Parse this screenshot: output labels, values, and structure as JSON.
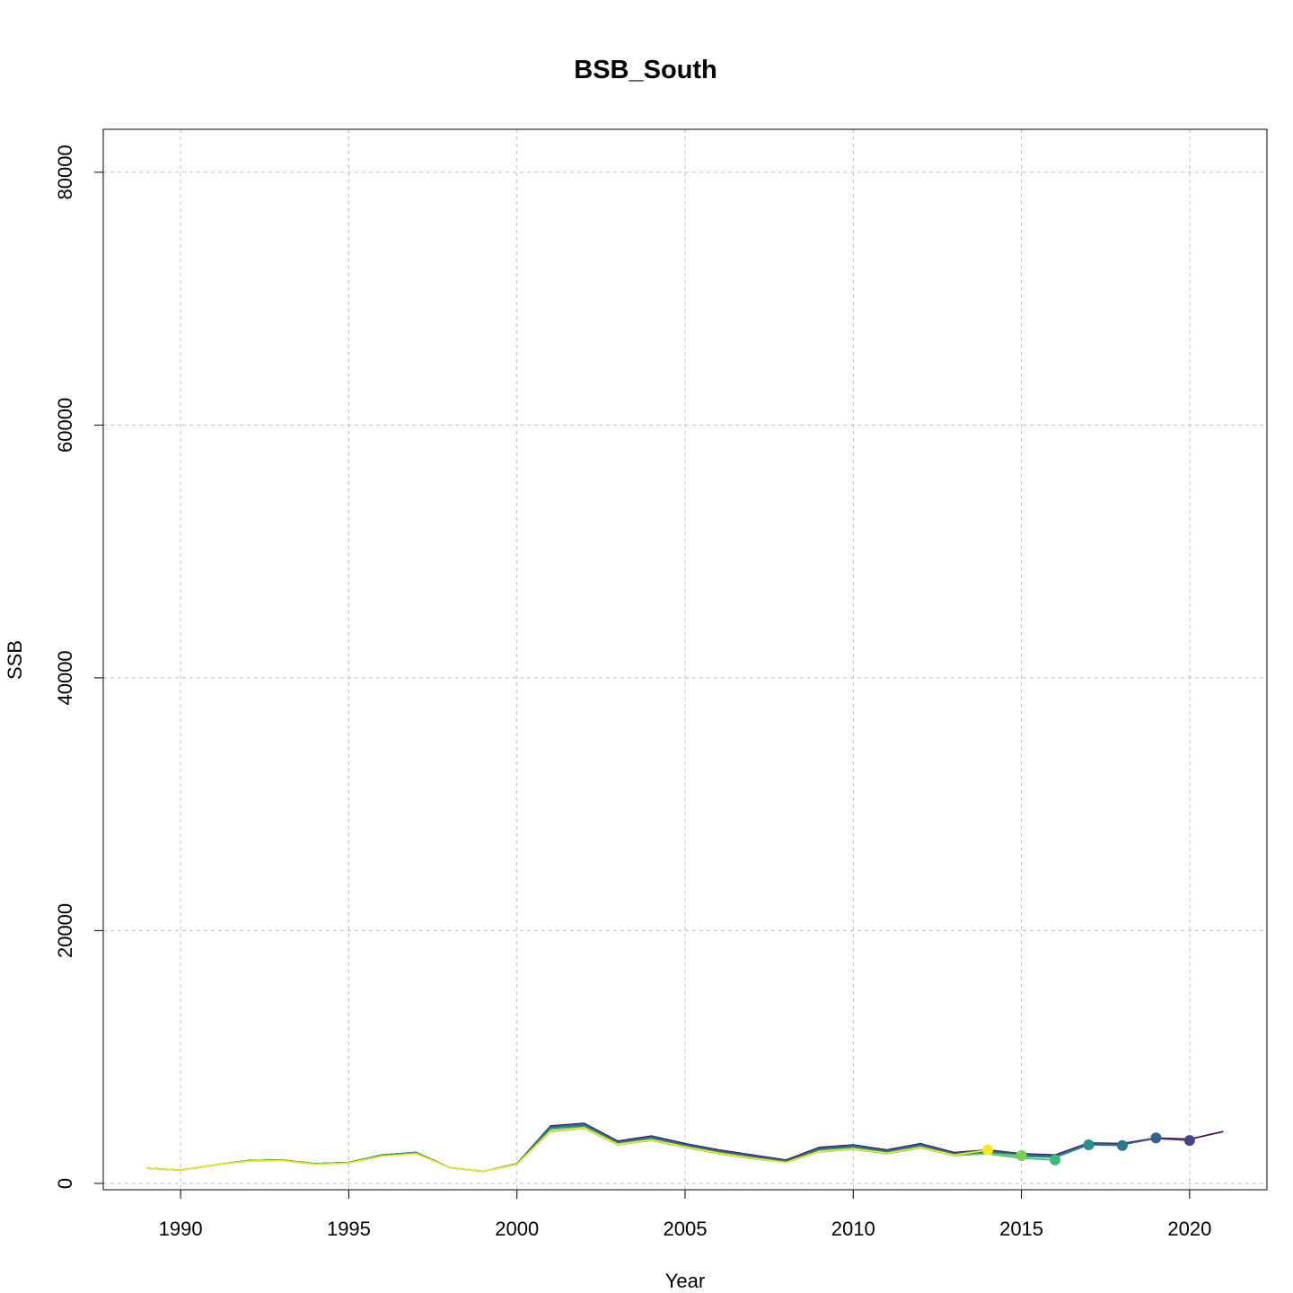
{
  "chart_data": {
    "type": "line",
    "title": "BSB_South",
    "xlabel": "Year",
    "ylabel": "SSB",
    "xlim": [
      1987.7,
      2022.3
    ],
    "ylim": [
      -500,
      83400
    ],
    "xticks": [
      1990,
      1995,
      2000,
      2005,
      2010,
      2015,
      2020
    ],
    "yticks": [
      0,
      20000,
      40000,
      60000,
      80000
    ],
    "grid": true,
    "series": [
      {
        "color": "#440154",
        "terminal_year": 2021,
        "x": [
          1989,
          1990,
          1991,
          1992,
          1993,
          1994,
          1995,
          1996,
          1997,
          1998,
          1999,
          2000,
          2001,
          2002,
          2003,
          2004,
          2005,
          2006,
          2007,
          2008,
          2009,
          2010,
          2011,
          2012,
          2013,
          2014,
          2015,
          2016,
          2017,
          2018,
          2019,
          2020,
          2021
        ],
        "values": [
          1200,
          1050,
          1450,
          1800,
          1850,
          1550,
          1650,
          2250,
          2450,
          1250,
          950,
          1550,
          4550,
          4750,
          3350,
          3750,
          3150,
          2650,
          2250,
          1850,
          2850,
          3050,
          2650,
          3150,
          2450,
          2650,
          2350,
          2250,
          3200,
          3150,
          3600,
          3500,
          4100
        ]
      },
      {
        "color": "#414487",
        "terminal_year": 2020,
        "x": [
          1989,
          1990,
          1991,
          1992,
          1993,
          1994,
          1995,
          1996,
          1997,
          1998,
          1999,
          2000,
          2001,
          2002,
          2003,
          2004,
          2005,
          2006,
          2007,
          2008,
          2009,
          2010,
          2011,
          2012,
          2013,
          2014,
          2015,
          2016,
          2017,
          2018,
          2019,
          2020
        ],
        "values": [
          1200,
          1050,
          1450,
          1800,
          1850,
          1550,
          1650,
          2250,
          2450,
          1250,
          950,
          1550,
          4500,
          4700,
          3300,
          3700,
          3100,
          2600,
          2200,
          1800,
          2800,
          3000,
          2600,
          3100,
          2400,
          2600,
          2300,
          2200,
          3150,
          3100,
          3550,
          3400
        ]
      },
      {
        "color": "#355F8D",
        "terminal_year": 2019,
        "x": [
          1989,
          1990,
          1991,
          1992,
          1993,
          1994,
          1995,
          1996,
          1997,
          1998,
          1999,
          2000,
          2001,
          2002,
          2003,
          2004,
          2005,
          2006,
          2007,
          2008,
          2009,
          2010,
          2011,
          2012,
          2013,
          2014,
          2015,
          2016,
          2017,
          2018,
          2019
        ],
        "values": [
          1200,
          1050,
          1450,
          1800,
          1850,
          1550,
          1650,
          2250,
          2450,
          1250,
          950,
          1550,
          4450,
          4650,
          3250,
          3650,
          3050,
          2550,
          2150,
          1750,
          2750,
          2950,
          2550,
          3050,
          2350,
          2550,
          2250,
          2150,
          3100,
          3050,
          3600
        ]
      },
      {
        "color": "#2A788E",
        "terminal_year": 2018,
        "x": [
          1989,
          1990,
          1991,
          1992,
          1993,
          1994,
          1995,
          1996,
          1997,
          1998,
          1999,
          2000,
          2001,
          2002,
          2003,
          2004,
          2005,
          2006,
          2007,
          2008,
          2009,
          2010,
          2011,
          2012,
          2013,
          2014,
          2015,
          2016,
          2017,
          2018
        ],
        "values": [
          1200,
          1050,
          1450,
          1800,
          1850,
          1550,
          1650,
          2250,
          2450,
          1250,
          950,
          1550,
          4400,
          4600,
          3200,
          3600,
          3000,
          2500,
          2100,
          1750,
          2700,
          2900,
          2500,
          3000,
          2300,
          2500,
          2200,
          2100,
          3050,
          3000
        ]
      },
      {
        "color": "#21918C",
        "terminal_year": 2017,
        "x": [
          1989,
          1990,
          1991,
          1992,
          1993,
          1994,
          1995,
          1996,
          1997,
          1998,
          1999,
          2000,
          2001,
          2002,
          2003,
          2004,
          2005,
          2006,
          2007,
          2008,
          2009,
          2010,
          2011,
          2012,
          2013,
          2014,
          2015,
          2016,
          2017
        ],
        "values": [
          1200,
          1050,
          1450,
          1800,
          1850,
          1550,
          1650,
          2250,
          2450,
          1250,
          950,
          1550,
          4350,
          4550,
          3150,
          3550,
          2950,
          2450,
          2050,
          1700,
          2650,
          2850,
          2450,
          2950,
          2250,
          2450,
          2150,
          2050,
          3050
        ]
      },
      {
        "color": "#3BBB75",
        "terminal_year": 2016,
        "x": [
          1989,
          1990,
          1991,
          1992,
          1993,
          1994,
          1995,
          1996,
          1997,
          1998,
          1999,
          2000,
          2001,
          2002,
          2003,
          2004,
          2005,
          2006,
          2007,
          2008,
          2009,
          2010,
          2011,
          2012,
          2013,
          2014,
          2015,
          2016
        ],
        "values": [
          1200,
          1050,
          1450,
          1800,
          1850,
          1550,
          1650,
          2200,
          2400,
          1250,
          950,
          1500,
          4200,
          4450,
          3100,
          3450,
          2900,
          2400,
          2000,
          1650,
          2550,
          2750,
          2400,
          2850,
          2200,
          2350,
          2000,
          1850
        ]
      },
      {
        "color": "#7AD151",
        "terminal_year": 2015,
        "x": [
          1989,
          1990,
          1991,
          1992,
          1993,
          1994,
          1995,
          1996,
          1997,
          1998,
          1999,
          2000,
          2001,
          2002,
          2003,
          2004,
          2005,
          2006,
          2007,
          2008,
          2009,
          2010,
          2011,
          2012,
          2013,
          2014,
          2015
        ],
        "values": [
          1200,
          1050,
          1450,
          1750,
          1800,
          1500,
          1600,
          2150,
          2350,
          1250,
          950,
          1500,
          4100,
          4350,
          3050,
          3400,
          2850,
          2350,
          1950,
          1650,
          2500,
          2700,
          2350,
          2800,
          2200,
          2350,
          2200
        ]
      },
      {
        "color": "#FDE725",
        "terminal_year": 2014,
        "x": [
          1989,
          1990,
          1991,
          1992,
          1993,
          1994,
          1995,
          1996,
          1997,
          1998,
          1999,
          2000,
          2001,
          2002,
          2003,
          2004,
          2005,
          2006,
          2007,
          2008,
          2009,
          2010,
          2011,
          2012,
          2013,
          2014
        ],
        "values": [
          1200,
          1050,
          1450,
          1750,
          1800,
          1500,
          1600,
          2150,
          2350,
          1250,
          950,
          1500,
          4150,
          4400,
          3100,
          3450,
          2900,
          2400,
          2000,
          1650,
          2550,
          2750,
          2400,
          2850,
          2250,
          2650
        ]
      }
    ]
  }
}
